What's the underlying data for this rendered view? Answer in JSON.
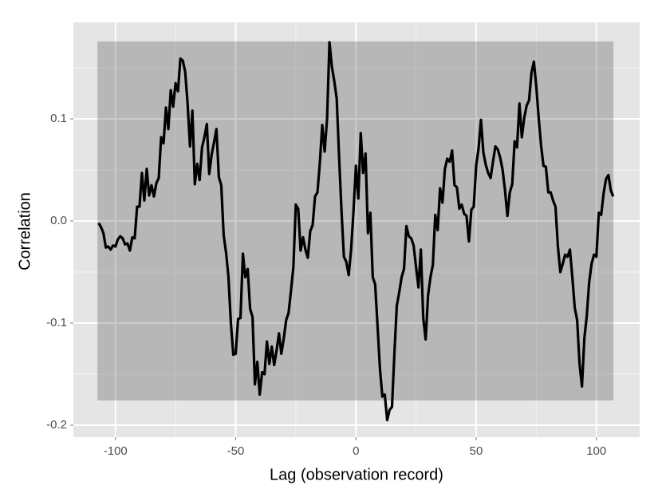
{
  "chart_data": {
    "type": "line",
    "x_label": "Lag (observation record)",
    "y_label": "Correlation",
    "x": [
      -107,
      -106,
      -105,
      -104,
      -103,
      -102,
      -101,
      -100,
      -99,
      -98,
      -97,
      -96,
      -95,
      -94,
      -93,
      -92,
      -91,
      -90,
      -89,
      -88,
      -87,
      -86,
      -85,
      -84,
      -83,
      -82,
      -81,
      -80,
      -79,
      -78,
      -77,
      -76,
      -75,
      -74,
      -73,
      -72,
      -71,
      -70,
      -69,
      -68,
      -67,
      -66,
      -65,
      -64,
      -63,
      -62,
      -61,
      -60,
      -59,
      -58,
      -57,
      -56,
      -55,
      -54,
      -53,
      -52,
      -51,
      -50,
      -49,
      -48,
      -47,
      -46,
      -45,
      -44,
      -43,
      -42,
      -41,
      -40,
      -39,
      -38,
      -37,
      -36,
      -35,
      -34,
      -33,
      -32,
      -31,
      -30,
      -29,
      -28,
      -27,
      -26,
      -25,
      -24,
      -23,
      -22,
      -21,
      -20,
      -19,
      -18,
      -17,
      -16,
      -15,
      -14,
      -13,
      -12,
      -11,
      -10,
      -9,
      -8,
      -7,
      -6,
      -5,
      -4,
      -3,
      -2,
      -1,
      0,
      1,
      2,
      3,
      4,
      5,
      6,
      7,
      8,
      9,
      10,
      11,
      12,
      13,
      14,
      15,
      16,
      17,
      18,
      19,
      20,
      21,
      22,
      23,
      24,
      25,
      26,
      27,
      28,
      29,
      30,
      31,
      32,
      33,
      34,
      35,
      36,
      37,
      38,
      39,
      40,
      41,
      42,
      43,
      44,
      45,
      46,
      47,
      48,
      49,
      50,
      51,
      52,
      53,
      54,
      55,
      56,
      57,
      58,
      59,
      60,
      61,
      62,
      63,
      64,
      65,
      66,
      67,
      68,
      69,
      70,
      71,
      72,
      73,
      74,
      75,
      76,
      77,
      78,
      79,
      80,
      81,
      82,
      83,
      84,
      85,
      86,
      87,
      88,
      89,
      90,
      91,
      92,
      93,
      94,
      95,
      96,
      97,
      98,
      99,
      100,
      101,
      102,
      103,
      104,
      105,
      106,
      107
    ],
    "values": [
      -0.002,
      -0.006,
      -0.012,
      -0.026,
      -0.025,
      -0.028,
      -0.024,
      -0.025,
      -0.018,
      -0.015,
      -0.017,
      -0.023,
      -0.022,
      -0.029,
      -0.016,
      -0.017,
      0.014,
      0.014,
      0.047,
      0.02,
      0.051,
      0.025,
      0.035,
      0.024,
      0.037,
      0.042,
      0.082,
      0.076,
      0.111,
      0.09,
      0.128,
      0.112,
      0.135,
      0.127,
      0.159,
      0.157,
      0.146,
      0.115,
      0.073,
      0.108,
      0.036,
      0.056,
      0.04,
      0.072,
      0.082,
      0.095,
      0.046,
      0.065,
      0.077,
      0.09,
      0.043,
      0.035,
      -0.014,
      -0.031,
      -0.055,
      -0.1,
      -0.131,
      -0.13,
      -0.096,
      -0.095,
      -0.032,
      -0.055,
      -0.047,
      -0.086,
      -0.094,
      -0.16,
      -0.138,
      -0.17,
      -0.148,
      -0.15,
      -0.118,
      -0.14,
      -0.123,
      -0.141,
      -0.127,
      -0.11,
      -0.13,
      -0.115,
      -0.097,
      -0.09,
      -0.068,
      -0.045,
      0.016,
      0.012,
      -0.029,
      -0.016,
      -0.028,
      -0.036,
      -0.01,
      -0.004,
      0.024,
      0.028,
      0.057,
      0.094,
      0.068,
      0.1,
      0.175,
      0.151,
      0.137,
      0.12,
      0.063,
      0.01,
      -0.035,
      -0.04,
      -0.053,
      -0.028,
      0.01,
      0.054,
      0.022,
      0.086,
      0.047,
      0.066,
      -0.012,
      0.008,
      -0.055,
      -0.062,
      -0.103,
      -0.145,
      -0.172,
      -0.17,
      -0.195,
      -0.185,
      -0.182,
      -0.13,
      -0.083,
      -0.07,
      -0.055,
      -0.047,
      -0.005,
      -0.015,
      -0.017,
      -0.024,
      -0.045,
      -0.065,
      -0.028,
      -0.095,
      -0.116,
      -0.073,
      -0.055,
      -0.043,
      0.006,
      -0.009,
      0.032,
      0.018,
      0.051,
      0.061,
      0.058,
      0.069,
      0.035,
      0.033,
      0.012,
      0.016,
      0.007,
      0.005,
      -0.02,
      0.011,
      0.014,
      0.054,
      0.071,
      0.099,
      0.067,
      0.055,
      0.047,
      0.042,
      0.058,
      0.073,
      0.07,
      0.062,
      0.05,
      0.03,
      0.005,
      0.028,
      0.036,
      0.078,
      0.072,
      0.115,
      0.082,
      0.101,
      0.113,
      0.118,
      0.145,
      0.156,
      0.132,
      0.101,
      0.074,
      0.054,
      0.053,
      0.028,
      0.028,
      0.02,
      0.014,
      -0.025,
      -0.05,
      -0.042,
      -0.033,
      -0.035,
      -0.028,
      -0.055,
      -0.085,
      -0.097,
      -0.14,
      -0.162,
      -0.115,
      -0.093,
      -0.06,
      -0.042,
      -0.033,
      -0.035,
      0.008,
      0.006,
      0.027,
      0.041,
      0.045,
      0.03,
      0.024
    ],
    "color": "#000000",
    "band": {
      "xlim": [
        -107.5,
        107.1
      ],
      "ylim": [
        -0.1758,
        0.1758
      ],
      "color": "#000000",
      "opacity": 0.2
    },
    "xlim": [
      -117.5,
      118
    ],
    "ylim": [
      -0.2117,
      0.1945
    ],
    "xticks": [
      -100,
      -50,
      0,
      50,
      100
    ],
    "yticks": [
      -0.2,
      -0.1,
      {
        "value": 0,
        "label": "0.0"
      },
      0.1
    ],
    "x_minor_grid": [
      -75,
      -25,
      25,
      75
    ],
    "y_minor_grid": [
      -0.15,
      -0.05,
      0.05,
      0.15
    ],
    "grid": true
  }
}
